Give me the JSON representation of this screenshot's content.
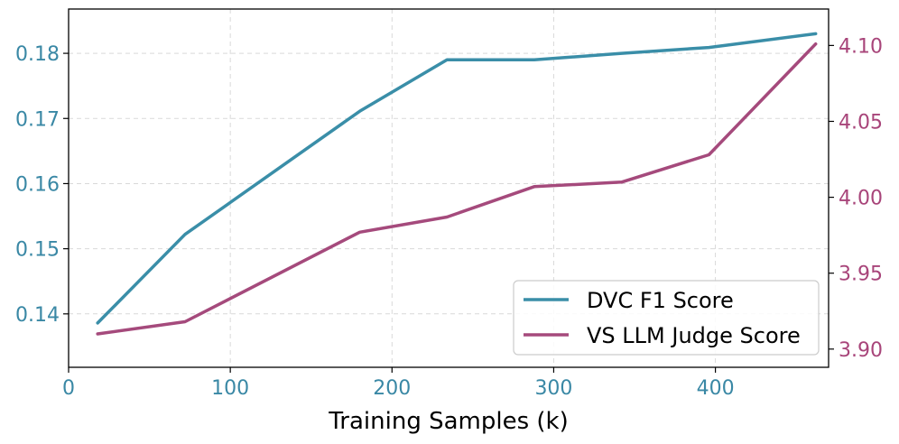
{
  "chart_data": {
    "type": "line",
    "title": "",
    "xlabel": "Training Samples (k)",
    "xlim": [
      0,
      470
    ],
    "x_ticks": [
      0,
      100,
      200,
      300,
      400
    ],
    "x_tick_labels": [
      "0",
      "100",
      "200",
      "300",
      "400"
    ],
    "grid": true,
    "legend_position": "bottom-right",
    "y_left": {
      "ylim": [
        0.1318,
        0.1868
      ],
      "ticks": [
        0.14,
        0.15,
        0.16,
        0.17,
        0.18
      ],
      "tick_labels": [
        "0.14",
        "0.15",
        "0.16",
        "0.17",
        "0.18"
      ],
      "color": "#3a88a5"
    },
    "y_right": {
      "ylim": [
        3.888,
        4.124
      ],
      "ticks": [
        3.9,
        3.95,
        4.0,
        4.05,
        4.1
      ],
      "tick_labels": [
        "3.90",
        "3.95",
        "4.00",
        "4.05",
        "4.10"
      ],
      "color": "#a8457a"
    },
    "series": [
      {
        "name": "DVC F1 Score",
        "axis": "left",
        "color": "#3a8ea8",
        "x": [
          18,
          72,
          180,
          234,
          288,
          342,
          396,
          462
        ],
        "values": [
          0.1386,
          0.1522,
          0.1711,
          0.179,
          0.179,
          0.18,
          0.1809,
          0.183
        ]
      },
      {
        "name": "VS LLM Judge Score",
        "axis": "right",
        "color": "#a54a7c",
        "x": [
          18,
          72,
          180,
          234,
          288,
          342,
          396,
          462
        ],
        "values": [
          3.91,
          3.918,
          3.977,
          3.987,
          4.007,
          4.01,
          4.028,
          4.101
        ]
      }
    ]
  }
}
